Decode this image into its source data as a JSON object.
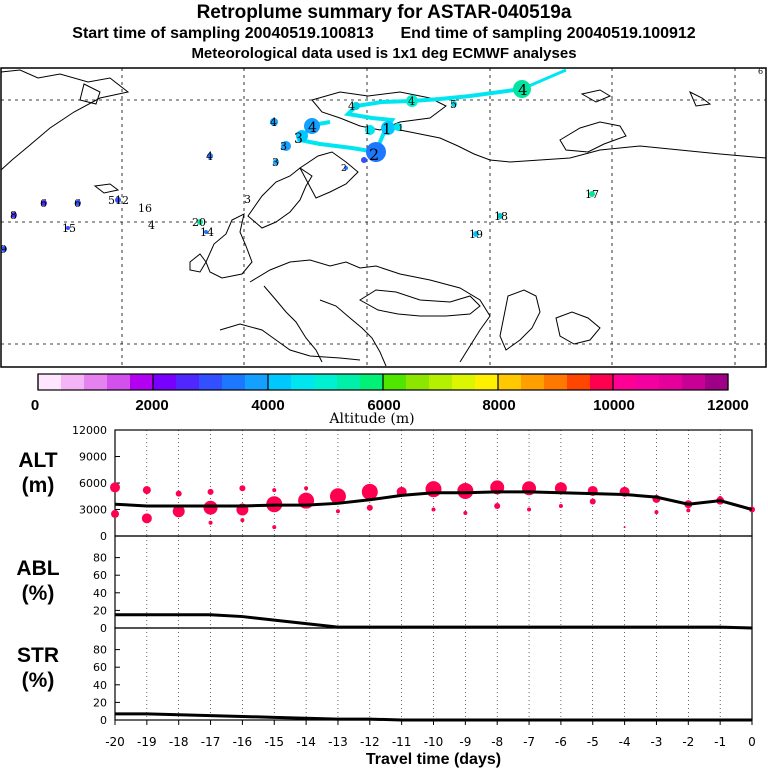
{
  "header": {
    "title": "Retroplume summary for ASTAR-040519a",
    "sampling": "Start time of sampling 20040519.100813      End time of sampling 20040519.100912",
    "met": "Meteorological data used is 1x1 deg ECMWF analyses"
  },
  "colorbar": {
    "label": "Altitude (m)",
    "ticks": [
      "0",
      "2000",
      "4000",
      "6000",
      "8000",
      "10000",
      "12000"
    ],
    "colors": [
      "#ffe6ff",
      "#f5b4f5",
      "#e682f0",
      "#d250eb",
      "#b400f0",
      "#7800ff",
      "#5028ff",
      "#3250ff",
      "#1e78ff",
      "#14a0ff",
      "#00c8ff",
      "#00e6f0",
      "#00f0d2",
      "#00f0aa",
      "#00f078",
      "#50e600",
      "#8ce600",
      "#b4f000",
      "#dcf500",
      "#fff000",
      "#ffc800",
      "#ffa000",
      "#ff7800",
      "#ff4600",
      "#ff0050",
      "#ff0096",
      "#f500a0",
      "#e6009b",
      "#c80096",
      "#a00087"
    ]
  },
  "map": {
    "cluster_labels": [
      {
        "text": "4",
        "c": "#00e6a0"
      },
      {
        "text": "4",
        "c": "#00f0d2"
      },
      {
        "text": "4",
        "c": "#00d2e6"
      },
      {
        "text": "5",
        "c": "#00d2e6"
      },
      {
        "text": "4",
        "c": "#00c8ff"
      },
      {
        "text": "4",
        "c": "#14a0ff"
      },
      {
        "text": "3",
        "c": "#14a0ff"
      },
      {
        "text": "3",
        "c": "#14a0ff"
      },
      {
        "text": "3",
        "c": "#00c8ff"
      },
      {
        "text": "1",
        "c": "#00c8ff"
      },
      {
        "text": "1",
        "c": "#00e6f0"
      },
      {
        "text": "1",
        "c": "#00c8ff"
      },
      {
        "text": "2",
        "c": "#1e78ff"
      },
      {
        "text": "2",
        "c": "#1e78ff"
      },
      {
        "text": "3",
        "c": "#000000"
      },
      {
        "text": "4",
        "c": "#1e78ff"
      },
      {
        "text": "8",
        "c": "#5028ff"
      },
      {
        "text": "6",
        "c": "#5028ff"
      },
      {
        "text": "6",
        "c": "#3250ff"
      },
      {
        "text": "512",
        "c": "#3250ff"
      },
      {
        "text": "16",
        "c": "#000000"
      },
      {
        "text": "4",
        "c": "#000000"
      },
      {
        "text": "15",
        "c": "#3250ff"
      },
      {
        "text": "9",
        "c": "#3250ff"
      },
      {
        "text": "20",
        "c": "#00e6a0"
      },
      {
        "text": "14",
        "c": "#000000"
      },
      {
        "text": "17",
        "c": "#00e6a0"
      },
      {
        "text": "18",
        "c": "#00c8c8"
      },
      {
        "text": "19",
        "c": "#00c8ff"
      },
      {
        "text": "6",
        "c": "#00e6f0"
      }
    ]
  },
  "chart_data": [
    {
      "type": "line",
      "panel": "ALT",
      "ylabel": "ALT\n(m)",
      "yticks": [
        "12000",
        "9000",
        "6000",
        "3000",
        "0"
      ],
      "ylim": [
        0,
        12000
      ],
      "xlim": [
        -20,
        0
      ],
      "x": [
        -20,
        -19,
        -18,
        -17,
        -16,
        -15,
        -14,
        -13,
        -12,
        -11,
        -10,
        -9,
        -8,
        -7,
        -6,
        -5,
        -4,
        -3,
        -2,
        -1,
        0
      ],
      "series": [
        {
          "name": "mean altitude",
          "values": [
            3600,
            3400,
            3400,
            3400,
            3400,
            3500,
            3500,
            3700,
            4100,
            4600,
            4900,
            4900,
            5000,
            5000,
            4900,
            4800,
            4700,
            4400,
            3600,
            4000,
            3000
          ]
        }
      ],
      "scatter": [
        {
          "x": -20,
          "y": 5500,
          "r": 5
        },
        {
          "x": -20,
          "y": 2500,
          "r": 4
        },
        {
          "x": -19,
          "y": 5200,
          "r": 4
        },
        {
          "x": -19,
          "y": 2000,
          "r": 5
        },
        {
          "x": -18,
          "y": 4800,
          "r": 3
        },
        {
          "x": -18,
          "y": 2800,
          "r": 6
        },
        {
          "x": -17,
          "y": 5000,
          "r": 3
        },
        {
          "x": -17,
          "y": 3200,
          "r": 7
        },
        {
          "x": -17,
          "y": 1500,
          "r": 2
        },
        {
          "x": -16,
          "y": 5400,
          "r": 3
        },
        {
          "x": -16,
          "y": 3000,
          "r": 6
        },
        {
          "x": -16,
          "y": 1800,
          "r": 2
        },
        {
          "x": -15,
          "y": 3600,
          "r": 8
        },
        {
          "x": -15,
          "y": 5200,
          "r": 2
        },
        {
          "x": -15,
          "y": 1000,
          "r": 2
        },
        {
          "x": -14,
          "y": 4000,
          "r": 8
        },
        {
          "x": -14,
          "y": 5400,
          "r": 2
        },
        {
          "x": -13,
          "y": 4500,
          "r": 8
        },
        {
          "x": -13,
          "y": 2800,
          "r": 2
        },
        {
          "x": -12,
          "y": 5000,
          "r": 8
        },
        {
          "x": -12,
          "y": 3200,
          "r": 3
        },
        {
          "x": -11,
          "y": 5000,
          "r": 5
        },
        {
          "x": -10,
          "y": 5300,
          "r": 8
        },
        {
          "x": -10,
          "y": 3000,
          "r": 2
        },
        {
          "x": -9,
          "y": 5100,
          "r": 8
        },
        {
          "x": -9,
          "y": 2600,
          "r": 2
        },
        {
          "x": -8,
          "y": 5500,
          "r": 7
        },
        {
          "x": -8,
          "y": 3400,
          "r": 3
        },
        {
          "x": -7,
          "y": 5400,
          "r": 7
        },
        {
          "x": -7,
          "y": 3000,
          "r": 2
        },
        {
          "x": -6,
          "y": 5400,
          "r": 6
        },
        {
          "x": -6,
          "y": 3400,
          "r": 2
        },
        {
          "x": -5,
          "y": 5100,
          "r": 5
        },
        {
          "x": -5,
          "y": 3900,
          "r": 3
        },
        {
          "x": -4,
          "y": 5000,
          "r": 5
        },
        {
          "x": -4,
          "y": 1000,
          "r": 1
        },
        {
          "x": -3,
          "y": 4200,
          "r": 4
        },
        {
          "x": -3,
          "y": 2700,
          "r": 2
        },
        {
          "x": -2,
          "y": 3600,
          "r": 4
        },
        {
          "x": -2,
          "y": 2900,
          "r": 2
        },
        {
          "x": -1,
          "y": 4000,
          "r": 4
        },
        {
          "x": -1,
          "y": 4300,
          "r": 2
        },
        {
          "x": 0,
          "y": 3000,
          "r": 3
        }
      ]
    },
    {
      "type": "line",
      "panel": "ABL",
      "ylabel": "ABL\n(%)",
      "yticks": [
        "80",
        "60",
        "40",
        "20",
        "0"
      ],
      "ylim": [
        0,
        100
      ],
      "xlim": [
        -20,
        0
      ],
      "x": [
        -20,
        -19,
        -18,
        -17,
        -16,
        -15,
        -14,
        -13,
        -12,
        -11,
        -10,
        -9,
        -8,
        -7,
        -6,
        -5,
        -4,
        -3,
        -2,
        -1,
        0
      ],
      "series": [
        {
          "name": "ABL fraction",
          "values": [
            15,
            15,
            15,
            15,
            13,
            9,
            5,
            1,
            1,
            1,
            1,
            1,
            1,
            1,
            1,
            1,
            1,
            1,
            1,
            1,
            0
          ]
        }
      ]
    },
    {
      "type": "line",
      "panel": "STR",
      "ylabel": "STR\n(%)",
      "yticks": [
        "80",
        "60",
        "40",
        "20",
        "0"
      ],
      "ylim": [
        0,
        100
      ],
      "xlim": [
        -20,
        0
      ],
      "x": [
        -20,
        -19,
        -18,
        -17,
        -16,
        -15,
        -14,
        -13,
        -12,
        -11,
        -10,
        -9,
        -8,
        -7,
        -6,
        -5,
        -4,
        -3,
        -2,
        -1,
        0
      ],
      "xticks": [
        "-20",
        "-19",
        "-18",
        "-17",
        "-16",
        "-15",
        "-14",
        "-13",
        "-12",
        "-11",
        "-10",
        "-9",
        "-8",
        "-7",
        "-6",
        "-5",
        "-4",
        "-3",
        "-2",
        "-1",
        "0"
      ],
      "xlabel": "Travel time (days)",
      "series": [
        {
          "name": "stratospheric fraction",
          "values": [
            7,
            7,
            6,
            5,
            4,
            3,
            2,
            1,
            1,
            0,
            0,
            0,
            0,
            0,
            0,
            0,
            0,
            0,
            0,
            0,
            0
          ]
        }
      ]
    }
  ]
}
